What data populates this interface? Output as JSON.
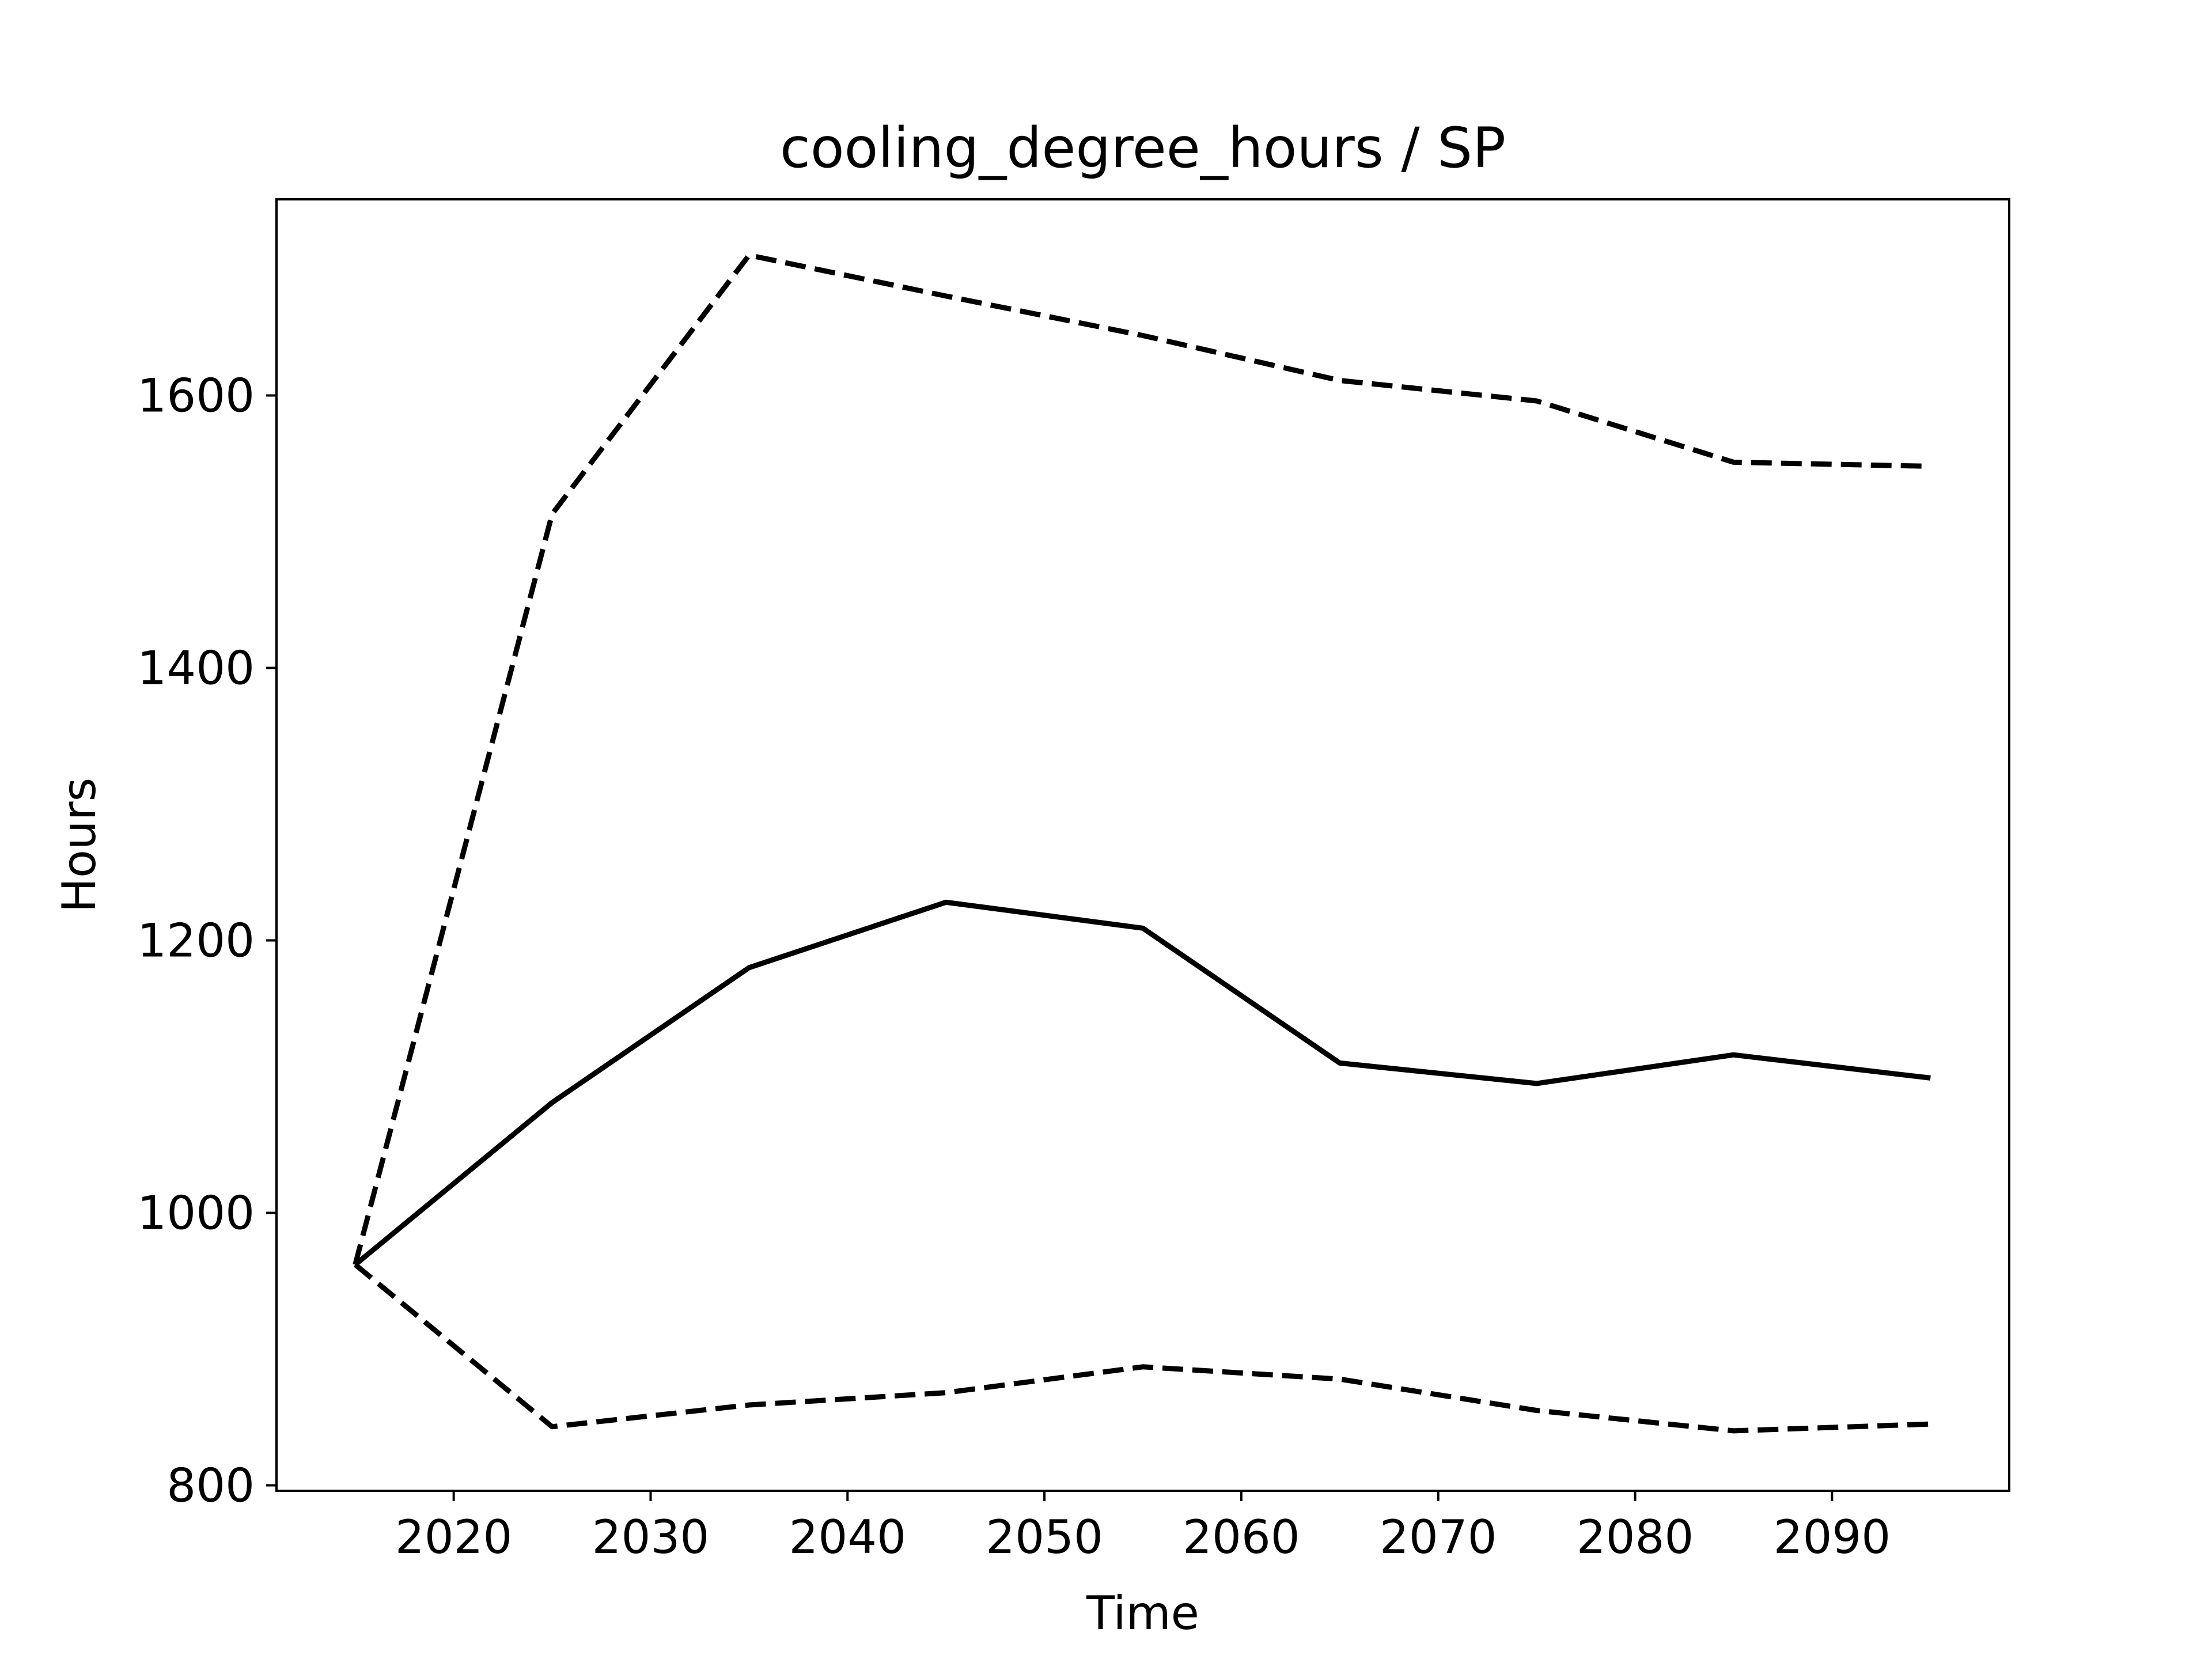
{
  "chart_data": {
    "type": "line",
    "title": "cooling_degree_hours / SP",
    "xlabel": "Time",
    "ylabel": "Hours",
    "xlim": [
      2011,
      2099
    ],
    "ylim": [
      796,
      1744
    ],
    "xticks": [
      2020,
      2030,
      2040,
      2050,
      2060,
      2070,
      2080,
      2090
    ],
    "yticks": [
      800,
      1000,
      1200,
      1400,
      1600
    ],
    "grid": false,
    "x": [
      2015,
      2025,
      2035,
      2045,
      2055,
      2065,
      2075,
      2085,
      2095
    ],
    "series": [
      {
        "style": "dashed",
        "color": "#000000",
        "values": [
          962,
          1513,
          1703,
          1673,
          1644,
          1611,
          1596,
          1551,
          1548
        ]
      },
      {
        "style": "solid",
        "color": "#000000",
        "values": [
          962,
          1081,
          1180,
          1228,
          1209,
          1110,
          1095,
          1116,
          1099
        ]
      },
      {
        "style": "dashed",
        "color": "#000000",
        "values": [
          962,
          843,
          859,
          868,
          887,
          878,
          855,
          840,
          845
        ]
      }
    ]
  }
}
